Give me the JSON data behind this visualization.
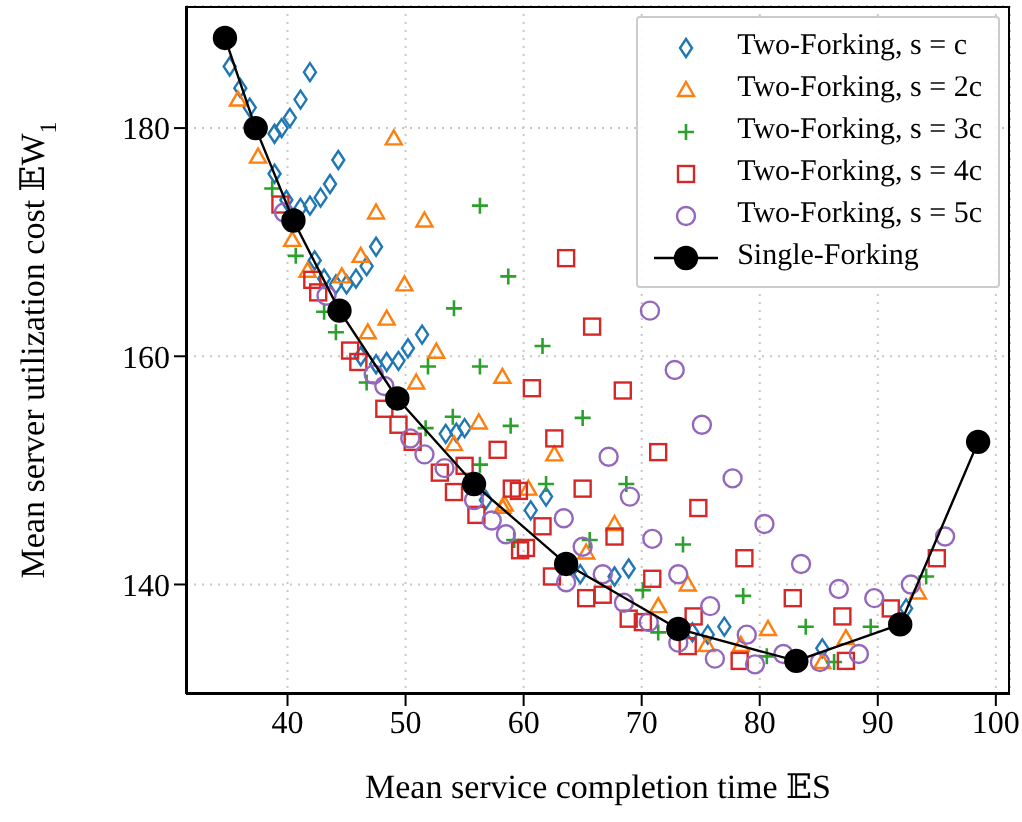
{
  "chart_data": {
    "type": "scatter",
    "xlabel": "Mean service completion time 𝔼S",
    "ylabel": "Mean server utilization cost 𝔼W$_{1}$",
    "xlim": [
      31.4,
      101.2
    ],
    "ylim": [
      130.4,
      190.7
    ],
    "xticks": [
      40,
      50,
      60,
      70,
      80,
      90,
      100
    ],
    "yticks": [
      140,
      160,
      180
    ],
    "grid": true,
    "legend": "top right",
    "series": [
      {
        "name": "Two-Forking, s = c",
        "color": "#1f77b4",
        "marker": "diamond",
        "x": [
          35.1,
          36.0,
          36.8,
          38.9,
          39.5,
          40.2,
          41.1,
          41.9,
          38.9,
          39.9,
          41.1,
          41.9,
          42.8,
          43.6,
          44.3,
          42.3,
          43.1,
          44.1,
          45.0,
          45.8,
          46.7,
          47.5,
          46.2,
          47.5,
          48.4,
          49.4,
          50.2,
          51.4,
          53.4,
          54.3,
          55.0,
          56.8,
          60.6,
          61.9,
          64.8,
          67.7,
          68.9,
          74.3,
          75.6,
          77.0,
          85.3,
          92.4
        ],
        "values": [
          185.4,
          183.5,
          181.8,
          179.5,
          180.0,
          180.9,
          182.5,
          184.9,
          176.0,
          173.7,
          173.0,
          173.2,
          173.9,
          175.1,
          177.2,
          168.4,
          166.8,
          166.3,
          166.3,
          166.8,
          167.9,
          169.6,
          160.0,
          159.3,
          159.5,
          159.6,
          160.7,
          161.9,
          153.2,
          153.3,
          153.7,
          147.4,
          146.5,
          147.7,
          140.9,
          140.7,
          141.4,
          135.8,
          135.6,
          136.3,
          134.4,
          137.9
        ]
      },
      {
        "name": "Two-Forking, s = 2c",
        "color": "#ff7f0e",
        "marker": "triangle",
        "x": [
          35.8,
          37.5,
          40.4,
          41.7,
          44.6,
          49.0,
          47.5,
          51.6,
          46.2,
          49.9,
          48.4,
          46.8,
          52.6,
          50.9,
          58.2,
          56.2,
          54.1,
          58.4,
          62.6,
          60.4,
          58.2,
          67.7,
          65.3,
          73.9,
          71.4,
          75.5,
          80.7,
          78.4,
          87.3,
          85.3,
          93.4
        ],
        "values": [
          182.5,
          177.5,
          170.2,
          167.5,
          167.0,
          179.1,
          172.6,
          171.9,
          168.8,
          166.3,
          163.3,
          162.1,
          160.4,
          157.7,
          158.2,
          154.2,
          152.3,
          147.0,
          151.4,
          148.4,
          146.8,
          145.3,
          142.8,
          140.0,
          138.1,
          134.7,
          136.1,
          134.7,
          135.3,
          133.2,
          139.3
        ]
      },
      {
        "name": "Two-Forking, s = 3c",
        "color": "#2ca02c",
        "marker": "cross",
        "x": [
          38.7,
          40.7,
          43.1,
          44.1,
          46.7,
          51.9,
          54.1,
          56.3,
          54.0,
          58.9,
          56.3,
          51.7,
          59.2,
          56.3,
          58.7,
          61.6,
          65.0,
          61.9,
          68.7,
          73.5,
          65.6,
          70.1,
          71.4,
          78.6,
          83.9,
          89.4,
          80.6,
          86.3,
          94.1
        ],
        "values": [
          174.7,
          168.8,
          163.9,
          162.1,
          157.7,
          159.1,
          164.2,
          159.1,
          154.7,
          153.9,
          150.5,
          153.7,
          143.9,
          173.2,
          167.0,
          160.9,
          154.6,
          148.8,
          148.8,
          143.5,
          143.9,
          139.5,
          135.8,
          139.0,
          136.3,
          136.3,
          133.7,
          133.2,
          140.7
        ]
      },
      {
        "name": "Two-Forking, s = 4c",
        "color": "#d62728",
        "marker": "square",
        "x": [
          39.4,
          42.1,
          42.6,
          45.3,
          46.0,
          48.2,
          49.4,
          50.6,
          52.9,
          54.1,
          55.0,
          57.8,
          56.0,
          59.0,
          59.7,
          63.6,
          65.8,
          60.7,
          68.4,
          62.6,
          71.4,
          65.0,
          59.6,
          74.8,
          61.6,
          67.7,
          78.7,
          60.2,
          62.4,
          70.9,
          82.8,
          65.3,
          66.7,
          68.9,
          70.1,
          74.4,
          73.9,
          78.3,
          87.0,
          91.1,
          87.3,
          95.0
        ],
        "values": [
          173.3,
          166.7,
          165.6,
          160.5,
          159.5,
          155.4,
          154.0,
          152.5,
          149.8,
          148.1,
          150.4,
          151.8,
          146.1,
          148.4,
          143.0,
          168.6,
          162.6,
          157.2,
          157.0,
          152.8,
          151.6,
          148.4,
          148.2,
          146.7,
          145.1,
          144.2,
          142.3,
          143.2,
          140.7,
          140.5,
          138.8,
          138.8,
          139.1,
          137.0,
          136.7,
          137.2,
          134.6,
          133.3,
          137.2,
          137.9,
          133.3,
          142.3
        ]
      },
      {
        "name": "Two-Forking, s = 5c",
        "color": "#9467bd",
        "marker": "circle",
        "x": [
          39.7,
          43.3,
          47.3,
          48.2,
          50.4,
          51.6,
          53.3,
          55.8,
          57.3,
          58.5,
          70.7,
          72.8,
          75.1,
          67.2,
          77.7,
          69.0,
          63.4,
          80.4,
          70.9,
          65.0,
          83.5,
          73.1,
          66.7,
          63.6,
          86.7,
          68.5,
          75.8,
          89.7,
          92.8,
          95.7,
          70.6,
          73.1,
          76.2,
          78.9,
          79.6,
          82.0,
          85.1,
          88.4
        ],
        "values": [
          172.6,
          165.3,
          158.4,
          157.4,
          152.8,
          151.4,
          150.2,
          147.4,
          145.6,
          144.4,
          164.0,
          158.8,
          154.0,
          151.2,
          149.3,
          147.7,
          145.8,
          145.3,
          144.0,
          143.3,
          141.8,
          140.9,
          140.9,
          140.2,
          139.6,
          138.4,
          138.1,
          138.8,
          140.0,
          144.2,
          136.7,
          134.9,
          133.5,
          135.6,
          133.0,
          133.9,
          133.2,
          133.9
        ]
      },
      {
        "name": "Single-Forking",
        "color": "#000000",
        "type": "line",
        "marker": "circle",
        "x": [
          34.7,
          37.3,
          40.5,
          44.4,
          49.3,
          55.8,
          63.6,
          73.1,
          83.1,
          91.9,
          98.5
        ],
        "values": [
          187.9,
          180.0,
          171.9,
          164.0,
          156.3,
          148.8,
          141.8,
          136.1,
          133.3,
          136.5,
          152.5
        ]
      }
    ]
  }
}
